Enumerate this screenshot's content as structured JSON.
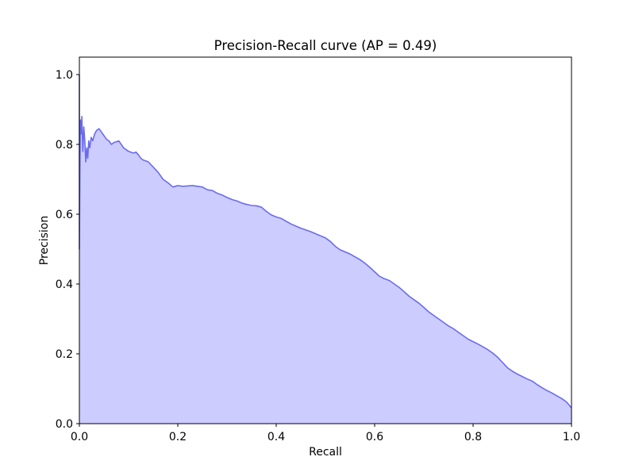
{
  "chart_data": {
    "type": "area",
    "title": "Precision-Recall curve (AP = 0.49)",
    "xlabel": "Recall",
    "ylabel": "Precision",
    "xlim": [
      0.0,
      1.0
    ],
    "ylim": [
      0.0,
      1.05
    ],
    "xticks": [
      "0.0",
      "0.2",
      "0.4",
      "0.6",
      "0.8",
      "1.0"
    ],
    "yticks": [
      "0.0",
      "0.2",
      "0.4",
      "0.6",
      "0.8",
      "1.0"
    ],
    "grid": false,
    "legend": "none",
    "series": [
      {
        "fill_color": "#ccccff",
        "line_color": "#6b6bf0",
        "points": [
          [
            0.0,
            1.0
          ],
          [
            0.0,
            0.5
          ],
          [
            0.001,
            0.72
          ],
          [
            0.002,
            0.87
          ],
          [
            0.004,
            0.83
          ],
          [
            0.005,
            0.88
          ],
          [
            0.007,
            0.78
          ],
          [
            0.009,
            0.85
          ],
          [
            0.011,
            0.81
          ],
          [
            0.013,
            0.75
          ],
          [
            0.015,
            0.79
          ],
          [
            0.017,
            0.76
          ],
          [
            0.019,
            0.81
          ],
          [
            0.021,
            0.79
          ],
          [
            0.024,
            0.82
          ],
          [
            0.027,
            0.81
          ],
          [
            0.031,
            0.83
          ],
          [
            0.035,
            0.84
          ],
          [
            0.04,
            0.845
          ],
          [
            0.045,
            0.835
          ],
          [
            0.05,
            0.825
          ],
          [
            0.055,
            0.815
          ],
          [
            0.06,
            0.81
          ],
          [
            0.065,
            0.8
          ],
          [
            0.07,
            0.805
          ],
          [
            0.08,
            0.81
          ],
          [
            0.085,
            0.8
          ],
          [
            0.09,
            0.79
          ],
          [
            0.1,
            0.78
          ],
          [
            0.11,
            0.775
          ],
          [
            0.115,
            0.778
          ],
          [
            0.12,
            0.77
          ],
          [
            0.125,
            0.76
          ],
          [
            0.13,
            0.755
          ],
          [
            0.14,
            0.75
          ],
          [
            0.15,
            0.735
          ],
          [
            0.16,
            0.72
          ],
          [
            0.17,
            0.7
          ],
          [
            0.18,
            0.69
          ],
          [
            0.19,
            0.678
          ],
          [
            0.2,
            0.682
          ],
          [
            0.21,
            0.68
          ],
          [
            0.23,
            0.682
          ],
          [
            0.25,
            0.678
          ],
          [
            0.26,
            0.67
          ],
          [
            0.27,
            0.668
          ],
          [
            0.28,
            0.66
          ],
          [
            0.29,
            0.655
          ],
          [
            0.3,
            0.648
          ],
          [
            0.31,
            0.642
          ],
          [
            0.32,
            0.638
          ],
          [
            0.33,
            0.632
          ],
          [
            0.34,
            0.628
          ],
          [
            0.35,
            0.625
          ],
          [
            0.36,
            0.624
          ],
          [
            0.37,
            0.62
          ],
          [
            0.38,
            0.608
          ],
          [
            0.39,
            0.598
          ],
          [
            0.4,
            0.592
          ],
          [
            0.41,
            0.588
          ],
          [
            0.42,
            0.58
          ],
          [
            0.43,
            0.572
          ],
          [
            0.44,
            0.566
          ],
          [
            0.45,
            0.56
          ],
          [
            0.46,
            0.555
          ],
          [
            0.47,
            0.55
          ],
          [
            0.48,
            0.544
          ],
          [
            0.49,
            0.538
          ],
          [
            0.5,
            0.532
          ],
          [
            0.51,
            0.522
          ],
          [
            0.52,
            0.508
          ],
          [
            0.53,
            0.498
          ],
          [
            0.54,
            0.492
          ],
          [
            0.55,
            0.486
          ],
          [
            0.56,
            0.478
          ],
          [
            0.57,
            0.47
          ],
          [
            0.58,
            0.46
          ],
          [
            0.59,
            0.448
          ],
          [
            0.6,
            0.435
          ],
          [
            0.61,
            0.422
          ],
          [
            0.62,
            0.415
          ],
          [
            0.63,
            0.41
          ],
          [
            0.64,
            0.4
          ],
          [
            0.65,
            0.39
          ],
          [
            0.66,
            0.378
          ],
          [
            0.67,
            0.365
          ],
          [
            0.68,
            0.355
          ],
          [
            0.69,
            0.345
          ],
          [
            0.7,
            0.333
          ],
          [
            0.71,
            0.32
          ],
          [
            0.72,
            0.31
          ],
          [
            0.73,
            0.3
          ],
          [
            0.74,
            0.29
          ],
          [
            0.75,
            0.28
          ],
          [
            0.76,
            0.272
          ],
          [
            0.77,
            0.262
          ],
          [
            0.78,
            0.252
          ],
          [
            0.79,
            0.242
          ],
          [
            0.8,
            0.235
          ],
          [
            0.81,
            0.228
          ],
          [
            0.82,
            0.22
          ],
          [
            0.83,
            0.212
          ],
          [
            0.84,
            0.202
          ],
          [
            0.85,
            0.19
          ],
          [
            0.86,
            0.175
          ],
          [
            0.87,
            0.16
          ],
          [
            0.88,
            0.15
          ],
          [
            0.89,
            0.142
          ],
          [
            0.9,
            0.135
          ],
          [
            0.91,
            0.128
          ],
          [
            0.92,
            0.122
          ],
          [
            0.93,
            0.112
          ],
          [
            0.94,
            0.103
          ],
          [
            0.95,
            0.095
          ],
          [
            0.96,
            0.088
          ],
          [
            0.97,
            0.08
          ],
          [
            0.98,
            0.072
          ],
          [
            0.99,
            0.062
          ],
          [
            1.0,
            0.045
          ]
        ]
      }
    ]
  }
}
